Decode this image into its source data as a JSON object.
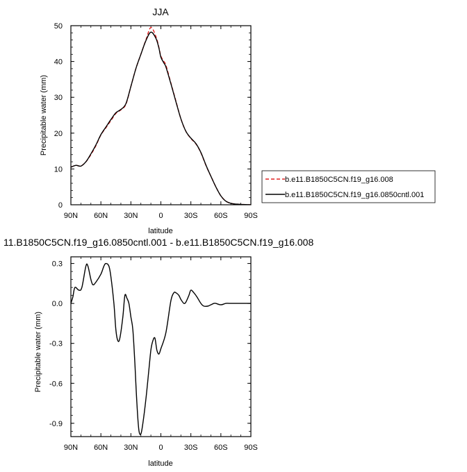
{
  "chart_data": [
    {
      "type": "line",
      "title": "JJA",
      "xlabel": "latitude",
      "ylabel": "Precipitable water (mm)",
      "xlim": [
        90,
        -90
      ],
      "ylim": [
        0,
        50
      ],
      "x_ticks": [
        90,
        60,
        30,
        0,
        -30,
        -60,
        -90
      ],
      "x_tick_labels": [
        "90N",
        "60N",
        "30N",
        "0",
        "30S",
        "60S",
        "90S"
      ],
      "y_ticks": [
        0,
        10,
        20,
        30,
        40,
        50
      ],
      "y_tick_labels": [
        "0",
        "10",
        "20",
        "30",
        "40",
        "50"
      ],
      "legend_position": "right",
      "series": [
        {
          "name": "b.e11.B1850C5CN.f19_g16.008",
          "color": "#e02020",
          "dash": "dashed",
          "points": [
            [
              90,
              10.5
            ],
            [
              85,
              11
            ],
            [
              80,
              10.8
            ],
            [
              75,
              12
            ],
            [
              70,
              14
            ],
            [
              65,
              16.5
            ],
            [
              60,
              19.5
            ],
            [
              55,
              21.5
            ],
            [
              50,
              23.5
            ],
            [
              45,
              25.5
            ],
            [
              40,
              26.5
            ],
            [
              35,
              28
            ],
            [
              30,
              33
            ],
            [
              25,
              38
            ],
            [
              20,
              42
            ],
            [
              15,
              46
            ],
            [
              10,
              49.5
            ],
            [
              5,
              47
            ],
            [
              2,
              44
            ],
            [
              0,
              41.5
            ],
            [
              -3,
              40
            ],
            [
              -5,
              39
            ],
            [
              -10,
              34
            ],
            [
              -15,
              29
            ],
            [
              -20,
              24
            ],
            [
              -25,
              20.5
            ],
            [
              -30,
              18.5
            ],
            [
              -35,
              17
            ],
            [
              -40,
              14.5
            ],
            [
              -45,
              11
            ],
            [
              -50,
              8
            ],
            [
              -55,
              5
            ],
            [
              -60,
              2.5
            ],
            [
              -65,
              1
            ],
            [
              -70,
              0.4
            ],
            [
              -75,
              0.2
            ],
            [
              -80,
              0.1
            ],
            [
              -90,
              0
            ]
          ]
        },
        {
          "name": "b.e11.B1850C5CN.f19_g16.0850cntl.001",
          "color": "#000000",
          "dash": "solid",
          "points": [
            [
              90,
              10.5
            ],
            [
              85,
              11
            ],
            [
              80,
              10.8
            ],
            [
              75,
              12
            ],
            [
              70,
              14.2
            ],
            [
              65,
              16.7
            ],
            [
              60,
              19.6
            ],
            [
              55,
              21.7
            ],
            [
              50,
              23.8
            ],
            [
              45,
              25.7
            ],
            [
              40,
              26.6
            ],
            [
              35,
              28.2
            ],
            [
              30,
              33
            ],
            [
              25,
              38
            ],
            [
              20,
              42
            ],
            [
              15,
              45.8
            ],
            [
              10,
              48.2
            ],
            [
              5,
              46.5
            ],
            [
              2,
              43.8
            ],
            [
              0,
              41.2
            ],
            [
              -3,
              39.6
            ],
            [
              -5,
              38.5
            ],
            [
              -10,
              33.8
            ],
            [
              -15,
              28.8
            ],
            [
              -20,
              24
            ],
            [
              -25,
              20.5
            ],
            [
              -30,
              18.6
            ],
            [
              -35,
              17.1
            ],
            [
              -40,
              14.6
            ],
            [
              -45,
              11.1
            ],
            [
              -50,
              8
            ],
            [
              -55,
              5
            ],
            [
              -60,
              2.5
            ],
            [
              -65,
              1
            ],
            [
              -70,
              0.4
            ],
            [
              -75,
              0.2
            ],
            [
              -80,
              0.1
            ],
            [
              -90,
              0
            ]
          ]
        }
      ]
    },
    {
      "type": "line",
      "title": "11.B1850C5CN.f19_g16.0850cntl.001 - b.e11.B1850C5CN.f19_g16.008",
      "xlabel": "latitude",
      "ylabel": "Precipitable water (mm)",
      "xlim": [
        90,
        -90
      ],
      "ylim": [
        -1.0,
        0.35
      ],
      "x_ticks": [
        90,
        60,
        30,
        0,
        -30,
        -60,
        -90
      ],
      "x_tick_labels": [
        "90N",
        "60N",
        "30N",
        "0",
        "30S",
        "60S",
        "90S"
      ],
      "y_ticks": [
        0.3,
        0.0,
        -0.3,
        -0.6,
        -0.9
      ],
      "y_tick_labels": [
        "0.3",
        "0.0",
        "-0.3",
        "-0.6",
        "-0.9"
      ],
      "series": [
        {
          "color": "#000000",
          "dash": "solid",
          "points": [
            [
              90,
              0.0
            ],
            [
              88,
              0.05
            ],
            [
              86,
              0.12
            ],
            [
              82,
              0.1
            ],
            [
              79,
              0.12
            ],
            [
              75,
              0.28
            ],
            [
              73,
              0.28
            ],
            [
              70,
              0.18
            ],
            [
              68,
              0.14
            ],
            [
              65,
              0.16
            ],
            [
              60,
              0.22
            ],
            [
              57,
              0.28
            ],
            [
              55,
              0.3
            ],
            [
              52,
              0.28
            ],
            [
              50,
              0.2
            ],
            [
              47,
              0.0
            ],
            [
              45,
              -0.2
            ],
            [
              43,
              -0.28
            ],
            [
              41,
              -0.26
            ],
            [
              38,
              -0.1
            ],
            [
              36,
              0.06
            ],
            [
              34,
              0.04
            ],
            [
              32,
              0.0
            ],
            [
              30,
              -0.1
            ],
            [
              28,
              -0.2
            ],
            [
              26,
              -0.45
            ],
            [
              24,
              -0.75
            ],
            [
              22,
              -0.95
            ],
            [
              20,
              -0.98
            ],
            [
              18,
              -0.9
            ],
            [
              15,
              -0.72
            ],
            [
              12,
              -0.5
            ],
            [
              10,
              -0.35
            ],
            [
              8,
              -0.28
            ],
            [
              6,
              -0.26
            ],
            [
              4,
              -0.35
            ],
            [
              2,
              -0.38
            ],
            [
              0,
              -0.34
            ],
            [
              -5,
              -0.22
            ],
            [
              -10,
              0.02
            ],
            [
              -13,
              0.08
            ],
            [
              -15,
              0.08
            ],
            [
              -18,
              0.06
            ],
            [
              -20,
              0.03
            ],
            [
              -23,
              0.0
            ],
            [
              -25,
              0.01
            ],
            [
              -28,
              0.06
            ],
            [
              -30,
              0.1
            ],
            [
              -33,
              0.08
            ],
            [
              -36,
              0.05
            ],
            [
              -40,
              0.0
            ],
            [
              -43,
              -0.02
            ],
            [
              -47,
              -0.02
            ],
            [
              -50,
              -0.01
            ],
            [
              -53,
              0.0
            ],
            [
              -55,
              0.0
            ],
            [
              -60,
              -0.01
            ],
            [
              -65,
              0.0
            ],
            [
              -70,
              0.0
            ],
            [
              -75,
              0.0
            ],
            [
              -80,
              0.0
            ],
            [
              -85,
              0.0
            ],
            [
              -90,
              0.0
            ]
          ]
        }
      ]
    }
  ]
}
